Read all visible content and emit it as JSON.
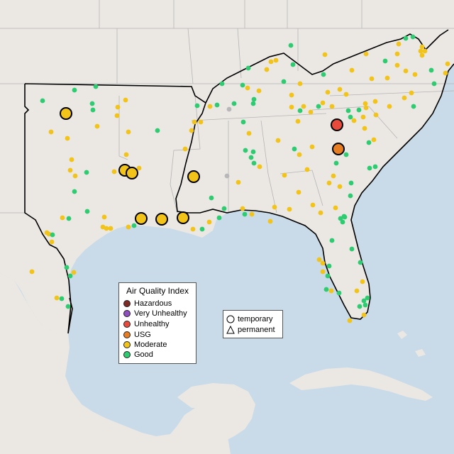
{
  "legend": {
    "title": "Air Quality Index",
    "categories": [
      {
        "label": "Hazardous",
        "color": "#7e2b25"
      },
      {
        "label": "Very Unhealthy",
        "color": "#8f4fbf"
      },
      {
        "label": "Unhealthy",
        "color": "#e84a3c"
      },
      {
        "label": "USG",
        "color": "#e77d22"
      },
      {
        "label": "Moderate",
        "color": "#f2c318"
      },
      {
        "label": "Good",
        "color": "#2ecc71"
      }
    ]
  },
  "shape_legend": {
    "temporary": "temporary",
    "permanent": "permanent"
  },
  "colors": {
    "water": "#c9dbe8",
    "land": "#ebe8e4",
    "boundary_gray": "#b0b0b0",
    "region_outline": "#000000",
    "no_data": "#b8b8b8"
  },
  "monitors": {
    "large": [
      {
        "cat": "Moderate"
      },
      {
        "cat": "Moderate"
      },
      {
        "cat": "Moderate"
      },
      {
        "cat": "Moderate"
      },
      {
        "cat": "Moderate"
      },
      {
        "cat": "Moderate"
      },
      {
        "cat": "Moderate"
      },
      {
        "cat": "Unhealthy"
      },
      {
        "cat": "USG"
      }
    ]
  }
}
